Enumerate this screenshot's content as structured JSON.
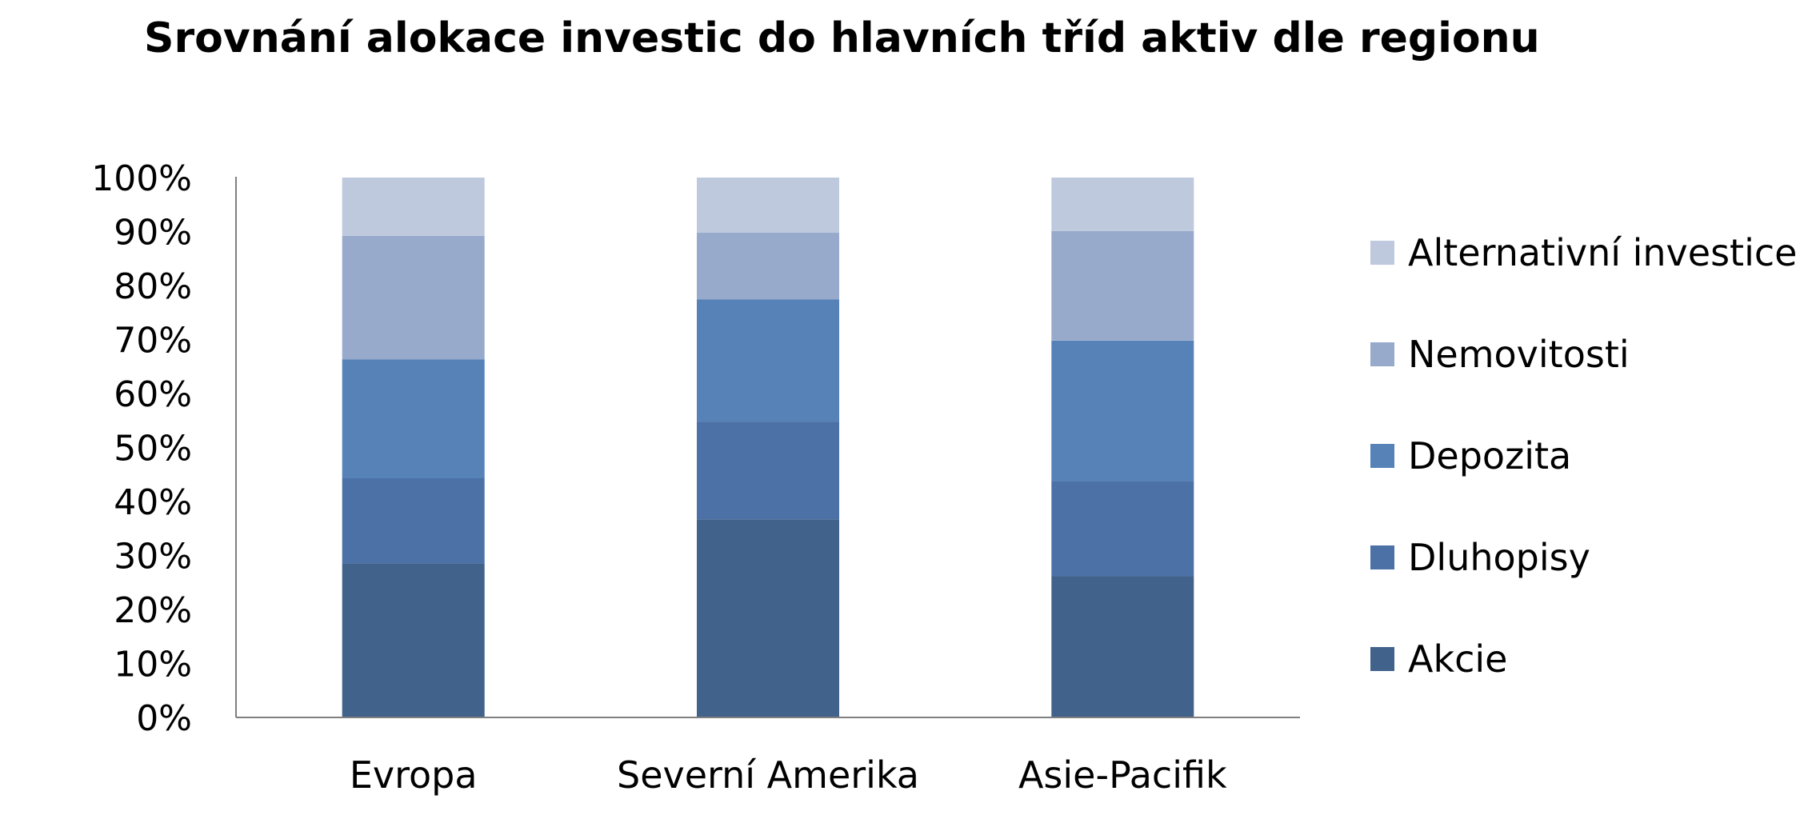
{
  "chart_data": {
    "type": "bar",
    "stacked": true,
    "title": "Srovnání alokace investic do hlavních tříd aktiv dle regionu",
    "xlabel": "",
    "ylabel": "",
    "ylim": [
      0,
      100
    ],
    "y_ticks": [
      "0%",
      "10%",
      "20%",
      "30%",
      "40%",
      "50%",
      "60%",
      "70%",
      "80%",
      "90%",
      "100%"
    ],
    "categories": [
      "Evropa",
      "Severní Amerika",
      "Asie-Pacifik"
    ],
    "series": [
      {
        "name": "Akcie",
        "color": "#41628A",
        "values": [
          28.5,
          36.7,
          26.2
        ]
      },
      {
        "name": "Dluhopisy",
        "color": "#4B71A6",
        "values": [
          15.8,
          18.1,
          17.6
        ]
      },
      {
        "name": "Depozita",
        "color": "#5682B8",
        "values": [
          22.0,
          22.6,
          26.0
        ]
      },
      {
        "name": "Nemovitosti",
        "color": "#97AACC",
        "values": [
          22.9,
          12.4,
          20.3
        ]
      },
      {
        "name": "Alternativní investice",
        "color": "#BEC9DE",
        "values": [
          10.8,
          10.2,
          9.9
        ]
      }
    ],
    "grid": false,
    "legend_position": "right"
  }
}
